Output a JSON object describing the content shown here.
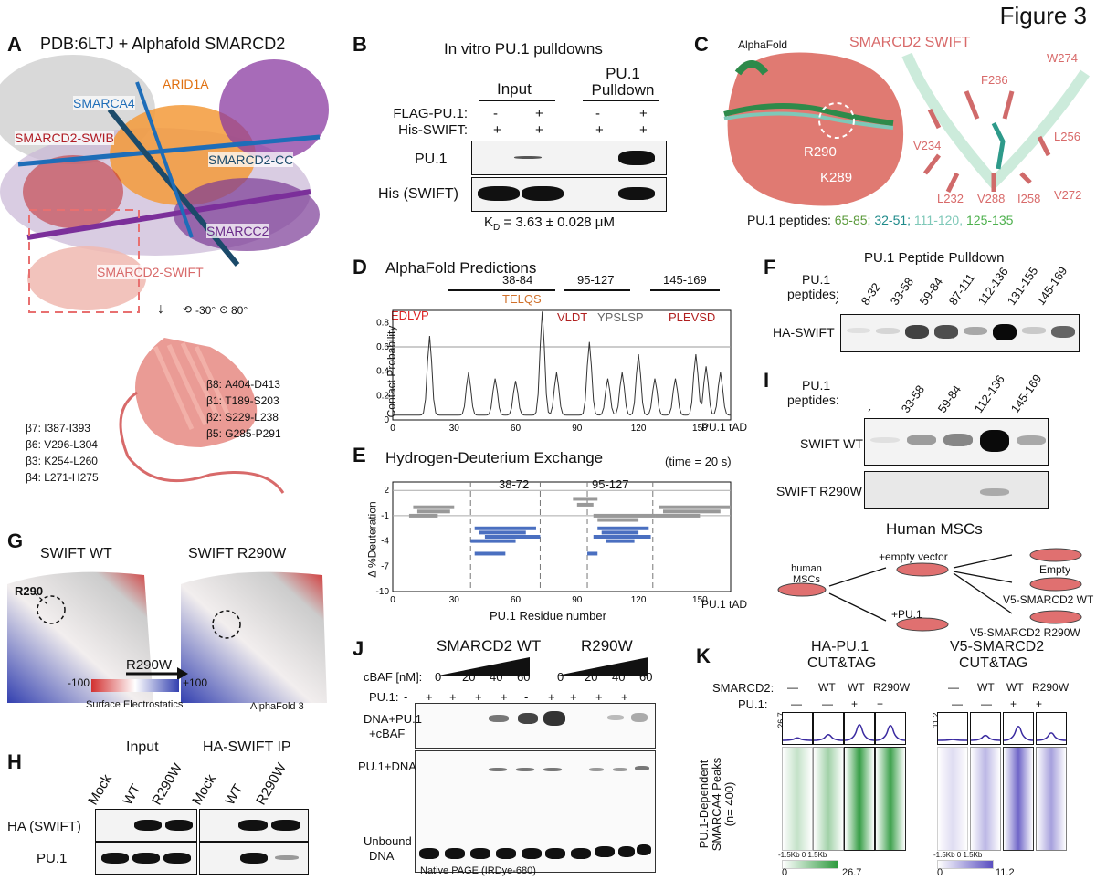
{
  "figure_title": "Figure 3",
  "A": {
    "label": "A",
    "title": "PDB:6LTJ + Alphafold SMARCD2",
    "chains": [
      "SMARCA4",
      "ARID1A",
      "SMARCD2-SWIB",
      "SMARCD2-CC",
      "SMARCC2",
      "SMARCD2-SWIFT"
    ],
    "rotation": [
      "-30°",
      "80°"
    ],
    "strands": [
      "β8: A404-D413",
      "β1: T189-S203",
      "β2: S229-L238",
      "β5: G285-P291",
      "β7: I387-I393",
      "β6: V296-L304",
      "β3: K254-L260",
      "β4: L271-H275"
    ]
  },
  "B": {
    "label": "B",
    "title": "In vitro PU.1 pulldowns",
    "groups": [
      "Input",
      "PU.1 Pulldown"
    ],
    "rows": [
      {
        "name": "FLAG-PU.1:",
        "marks": [
          "-",
          "+",
          "-",
          "+"
        ]
      },
      {
        "name": "His-SWIFT:",
        "marks": [
          "+",
          "+",
          "+",
          "+"
        ]
      }
    ],
    "blots": [
      "PU.1",
      "His (SWIFT)"
    ],
    "kd": "K",
    "kd_sub": "D",
    "kd_value": " = 3.63 ± 0.028 μM"
  },
  "C": {
    "label": "C",
    "alphafold": "AlphaFold",
    "title": "SMARCD2 SWIFT",
    "residues_left": [
      "R290",
      "K289"
    ],
    "residues_right": [
      "W274",
      "F286",
      "V234",
      "L256",
      "V272",
      "I258",
      "V288",
      "L232"
    ],
    "peptide_label": "PU.1 peptides:",
    "peptides": [
      {
        "text": "65-85;",
        "color": "#5a9a3a"
      },
      {
        "text": "32-51;",
        "color": "#1e8a8a"
      },
      {
        "text": "111-120,",
        "color": "#7ec8b8"
      },
      {
        "text": "125-135",
        "color": "#4db04d"
      }
    ]
  },
  "D": {
    "label": "D",
    "title": "AlphaFold Predictions",
    "regions": [
      "38-84",
      "95-127",
      "145-169"
    ],
    "motifs": [
      "EDLVP",
      "TELQS",
      "VLDT",
      "YPSLSP",
      "PLEVSD"
    ],
    "ylabel": "Contact Probability",
    "xlabel": "PU.1 tAD",
    "xticks": [
      "0",
      "30",
      "60",
      "90",
      "120",
      "150"
    ],
    "yticks": [
      "0",
      "0.2",
      "0.4",
      "0.6",
      "0.8"
    ]
  },
  "E": {
    "label": "E",
    "title": "Hydrogen-Deuterium Exchange",
    "time": "(time = 20 s)",
    "regions": [
      "38-72",
      "95-127"
    ],
    "ylabel": "Δ %Deuteration",
    "xlabel": "PU.1 Residue number",
    "xlabel2": "PU.1 tAD",
    "xticks": [
      "0",
      "30",
      "60",
      "90",
      "120",
      "150"
    ],
    "yticks": [
      "2",
      "-1",
      "-4",
      "-7",
      "-10"
    ]
  },
  "F": {
    "label": "F",
    "title": "PU.1 Peptide Pulldown",
    "row_label_1": "PU.1",
    "row_label_2": "peptides:",
    "lanes": [
      "-",
      "8-32",
      "33-58",
      "59-84",
      "87-111",
      "112-136",
      "131-155",
      "145-169"
    ],
    "blot": "HA-SWIFT",
    "intensities": [
      0.05,
      0.1,
      0.75,
      0.7,
      0.3,
      1.0,
      0.15,
      0.6
    ]
  },
  "I": {
    "label": "I",
    "row_label_1": "PU.1",
    "row_label_2": "peptides:",
    "lanes": [
      "-",
      "33-58",
      "59-84",
      "112-136",
      "145-169"
    ],
    "blots": [
      "SWIFT WT",
      "SWIFT R290W"
    ],
    "wt": [
      0.05,
      0.35,
      0.45,
      1.0,
      0.3
    ],
    "mut": [
      0.0,
      0.0,
      0.0,
      0.25,
      0.0
    ],
    "msc_title": "Human MSCs",
    "msc_nodes": [
      "human MSCs",
      "+empty vector",
      "+PU.1",
      "Empty",
      "V5-SMARCD2 WT",
      "V5-SMARCD2 R290W"
    ]
  },
  "G": {
    "label": "G",
    "wt": "SWIFT WT",
    "mut": "SWIFT R290W",
    "residue": "R290",
    "arrow": "R290W",
    "scale_min": "-100",
    "scale_max": "+100",
    "scale_label": "Surface Electrostatics",
    "model": "AlphaFold 3"
  },
  "H": {
    "label": "H",
    "groups": [
      "Input",
      "HA-SWIFT IP"
    ],
    "lanes": [
      "Mock",
      "WT",
      "R290W",
      "Mock",
      "WT",
      "R290W"
    ],
    "blots": [
      "HA (SWIFT)",
      "PU.1"
    ]
  },
  "J": {
    "label": "J",
    "groups": [
      "SMARCD2 WT",
      "R290W"
    ],
    "cbaf_label": "cBAF [nM]:",
    "cbaf": [
      "0",
      "20",
      "40",
      "60",
      "0",
      "20",
      "40",
      "60"
    ],
    "pu1_label": "PU.1:",
    "pu1": [
      "-",
      "+",
      "+",
      "+",
      "+",
      "-",
      "+",
      "+",
      "+",
      "+"
    ],
    "bands": [
      "DNA+PU.1",
      "+cBAF",
      "PU.1+DNA",
      "Unbound",
      "DNA"
    ],
    "footer": "Native PAGE (IRDye-680)"
  },
  "K": {
    "label": "K",
    "left_title_1": "HA-PU.1",
    "left_title_2": "CUT&TAG",
    "right_title_1": "V5-SMARCD2",
    "right_title_2": "CUT&TAG",
    "smarcd2_label": "SMARCD2:",
    "pu1_label": "PU.1:",
    "smarcd2": [
      "—",
      "WT",
      "WT",
      "R290W"
    ],
    "pu1": [
      "—",
      "—",
      "+",
      "+"
    ],
    "ylabel_1": "PU.1-Dependent",
    "ylabel_2": "SMARCA4 Peaks",
    "ylabel_3": "(n= 400)",
    "left_ymax": "26.7",
    "right_ymax": "11.2",
    "left_scale": [
      "0",
      "26.7"
    ],
    "right_scale": [
      "0",
      "11.2"
    ],
    "axis_left": "-1.5Kb 0 1.5Kb",
    "axis_right": "-1.5Kb 0 1.5Kb",
    "left_color": "#2e9a3e",
    "right_color": "#5a4fc0"
  }
}
